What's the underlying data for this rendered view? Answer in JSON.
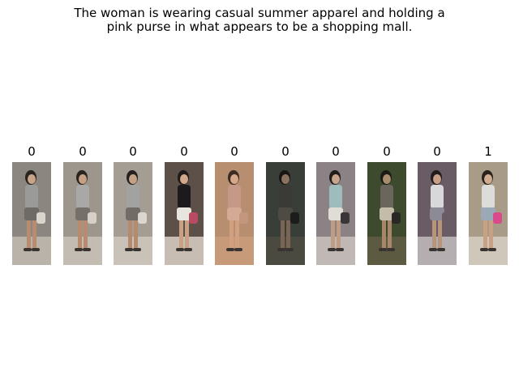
{
  "title": {
    "line1": "The woman is wearing casual summer apparel and holding  a",
    "line2": "pink purse in what appears to be a shopping mall."
  },
  "labels": [
    "0",
    "0",
    "0",
    "0",
    "0",
    "0",
    "0",
    "0",
    "0",
    "1"
  ],
  "thumbnails": [
    {
      "bg": "#8b8680",
      "floor": "#b9b3aa",
      "top": "#9a9a98",
      "bottom": "#6e6a66",
      "skin": "#c8a488",
      "hair": "#2a2420",
      "bag": "#d9d4cc",
      "legs": "#b88c70"
    },
    {
      "bg": "#9c968c",
      "floor": "#c2bcb2",
      "top": "#a8a8a6",
      "bottom": "#76706a",
      "skin": "#c6a084",
      "hair": "#2a2420",
      "bag": "#d6d0c8",
      "legs": "#b88a6e"
    },
    {
      "bg": "#a39d94",
      "floor": "#c8c2b8",
      "top": "#a2a2a0",
      "bottom": "#726c66",
      "skin": "#c4a084",
      "hair": "#262020",
      "bag": "#dcd6ce",
      "legs": "#b68a6e"
    },
    {
      "bg": "#5c5048",
      "floor": "#c7bdb2",
      "top": "#1c1a1c",
      "bottom": "#e8e4de",
      "skin": "#d0a88a",
      "hair": "#1e1a18",
      "bag": "#b84a62",
      "legs": "#caa084"
    },
    {
      "bg": "#b88e70",
      "floor": "#c79a7a",
      "top": "#c69888",
      "bottom": "#d4aa94",
      "skin": "#d6a888",
      "hair": "#3a2c24",
      "bag": "#c4967e",
      "legs": "#d0a080"
    },
    {
      "bg": "#3a3e38",
      "floor": "#4a4a40",
      "top": "#3c3a36",
      "bottom": "#4e4a44",
      "skin": "#8a7260",
      "hair": "#181614",
      "bag": "#1c1c1c",
      "legs": "#7a6454"
    },
    {
      "bg": "#8a8284",
      "floor": "#bfb8b4",
      "top": "#9fbcbc",
      "bottom": "#e0dcd6",
      "skin": "#c8a48c",
      "hair": "#201c1c",
      "bag": "#3a3638",
      "legs": "#c09c84"
    },
    {
      "bg": "#3e4a2e",
      "floor": "#5c5a40",
      "top": "#6a665c",
      "bottom": "#c4bca8",
      "skin": "#a88c6e",
      "hair": "#1c1a16",
      "bag": "#2a2824",
      "legs": "#a8866a"
    },
    {
      "bg": "#6a5c64",
      "floor": "#b4aeb0",
      "top": "#d8d8da",
      "bottom": "#8c8a94",
      "skin": "#c8a088",
      "hair": "#221c1c",
      "bag": "#6a5c64",
      "legs": "#b89478"
    },
    {
      "bg": "#a89c88",
      "floor": "#cfc7b9",
      "top": "#dcdcd8",
      "bottom": "#9aa8b8",
      "skin": "#d0ac90",
      "hair": "#2a221c",
      "bag": "#d84a8a",
      "legs": "#c8a084"
    }
  ]
}
